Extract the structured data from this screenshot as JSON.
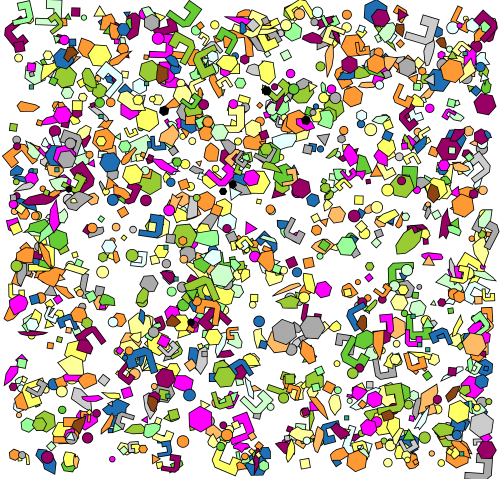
{
  "scene": {
    "description_visible_text": "",
    "background": "#ffffff",
    "outline": "#000000",
    "palette": {
      "yellow": "#ffff66",
      "pale_yellow": "#ffff99",
      "green": "#66cc33",
      "olive": "#99cc33",
      "light_green": "#99ff99",
      "mint": "#ccffcc",
      "orange": "#ff9933",
      "light_orange": "#ffbb66",
      "blue": "#1f6fb4",
      "gray": "#aaaaaa",
      "light_gray": "#cccccc",
      "magenta": "#ff00ff",
      "maroon": "#990066",
      "brown": "#8b4513",
      "teal": "#33aa88",
      "cyan_white": "#e6ffff",
      "black": "#000000"
    }
  }
}
